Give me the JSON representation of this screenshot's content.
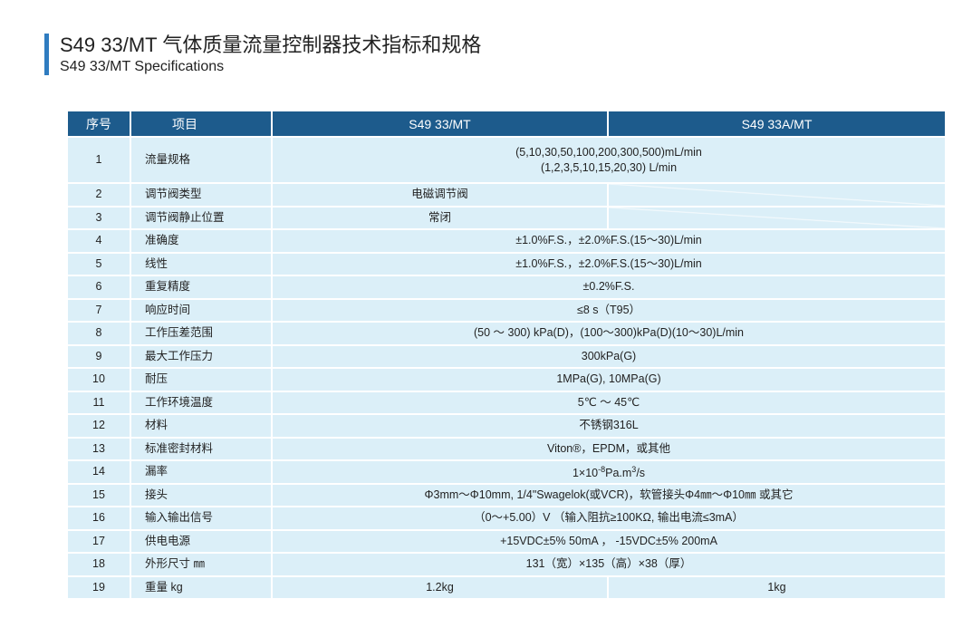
{
  "header": {
    "title": "S49 33/MT 气体质量流量控制器技术指标和规格",
    "subtitle": "S49 33/MT  Specifications"
  },
  "table": {
    "columns": [
      "序号",
      "项目",
      "S49 33/MT",
      "S49 33A/MT"
    ],
    "rows": [
      {
        "no": "1",
        "item": "流量规格",
        "both": [
          "(5,10,30,50,100,200,300,500)mL/min",
          "(1,2,3,5,10,15,20,30)  L/min"
        ]
      },
      {
        "no": "2",
        "item": "调节阀类型",
        "mt": "电磁调节阀"
      },
      {
        "no": "3",
        "item": "调节阀静止位置",
        "mt": "常闭"
      },
      {
        "no": "4",
        "item": "准确度",
        "both": [
          "±1.0%F.S.，±2.0%F.S.(15～30)L/min"
        ]
      },
      {
        "no": "5",
        "item": "线性",
        "both": [
          "±1.0%F.S.，±2.0%F.S.(15～30)L/min"
        ]
      },
      {
        "no": "6",
        "item": "重复精度",
        "both": [
          "±0.2%F.S."
        ]
      },
      {
        "no": "7",
        "item": "响应时间",
        "both": [
          "≤8 s（T95）"
        ]
      },
      {
        "no": "8",
        "item": "工作压差范围",
        "both": [
          "(50 ～ 300) kPa(D)，(100～300)kPa(D)(10～30)L/min"
        ]
      },
      {
        "no": "9",
        "item": "最大工作压力",
        "both": [
          "300kPa(G)"
        ]
      },
      {
        "no": "10",
        "item": "耐压",
        "both": [
          "1MPa(G), 10MPa(G)"
        ]
      },
      {
        "no": "11",
        "item": "工作环境温度",
        "both": [
          "5℃  ～  45℃"
        ]
      },
      {
        "no": "12",
        "item": "材料",
        "both": [
          "不锈钢316L"
        ]
      },
      {
        "no": "13",
        "item": "标准密封材料",
        "both": [
          "Viton®，EPDM，或其他"
        ]
      },
      {
        "no": "14",
        "item": "漏率",
        "sup": [
          "1×10",
          "-8",
          "Pa.m",
          "3",
          "/s"
        ]
      },
      {
        "no": "15",
        "item": "接头",
        "both": [
          "Φ3mm～Φ10mm, 1/4\"Swagelok(或VCR)，软管接头Φ4㎜～Φ10㎜   或其它"
        ]
      },
      {
        "no": "16",
        "item": "输入输出信号",
        "both": [
          "（0～+5.00）V    （输入阻抗≥100KΩ, 输出电流≤3mA）"
        ]
      },
      {
        "no": "17",
        "item": "供电电源",
        "both": [
          "+15VDC±5%  50mA  ，  -15VDC±5%  200mA"
        ]
      },
      {
        "no": "18",
        "item": "外形尺寸 ㎜",
        "both": [
          "131（宽）×135（高）×38（厚）"
        ]
      },
      {
        "no": "19",
        "item": "重量 kg",
        "mt": "1.2kg",
        "amt": "1kg"
      }
    ]
  }
}
